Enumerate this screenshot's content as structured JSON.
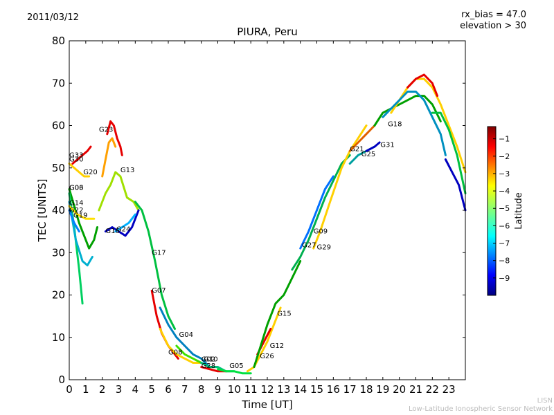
{
  "header": {
    "date": "2011/03/12",
    "rx_bias": "rx_bias = 47.0",
    "elevation": "elevation > 30"
  },
  "credit": {
    "line1": "LISN",
    "line2": "Low-Latitude Ionospheric Sensor Network"
  },
  "chart_data": {
    "type": "scatter",
    "title": "PIURA, Peru",
    "xlabel": "Time [UT]",
    "ylabel": "TEC [UNITS]",
    "xlim": [
      0,
      24
    ],
    "ylim": [
      0,
      80
    ],
    "xticks": [
      "0",
      "1",
      "2",
      "3",
      "4",
      "5",
      "6",
      "7",
      "8",
      "9",
      "10",
      "11",
      "12",
      "13",
      "14",
      "15",
      "16",
      "17",
      "18",
      "19",
      "20",
      "21",
      "22",
      "23"
    ],
    "yticks": [
      "0",
      "10",
      "20",
      "30",
      "40",
      "50",
      "60",
      "70",
      "80"
    ],
    "grid": false,
    "colorbar": {
      "label": "Latitude",
      "range": [
        -10,
        -0.3
      ],
      "ticks": [
        "-1",
        "-2",
        "-3",
        "-4",
        "-5",
        "-6",
        "-7",
        "-8",
        "-9"
      ]
    },
    "series": [
      {
        "name": "G33",
        "color": "#e60000",
        "points": [
          [
            0.2,
            51
          ],
          [
            0.5,
            52
          ],
          [
            0.8,
            53
          ],
          [
            1.1,
            54
          ],
          [
            1.3,
            55
          ]
        ]
      },
      {
        "name": "G30",
        "color": "#ffd000",
        "points": [
          [
            0.0,
            51
          ],
          [
            0.3,
            50
          ],
          [
            0.6,
            49
          ],
          [
            0.9,
            48
          ],
          [
            1.2,
            48
          ]
        ]
      },
      {
        "name": "G23",
        "color": "#e60000",
        "points": [
          [
            2.3,
            58
          ],
          [
            2.5,
            61
          ],
          [
            2.7,
            60
          ],
          [
            2.9,
            57
          ],
          [
            3.1,
            55
          ],
          [
            3.2,
            53
          ]
        ]
      },
      {
        "name": "G20",
        "color": "#ffa000",
        "points": [
          [
            2.0,
            48
          ],
          [
            2.2,
            52
          ],
          [
            2.4,
            56
          ],
          [
            2.6,
            57
          ],
          [
            2.8,
            55
          ]
        ]
      },
      {
        "name": "G13",
        "color": "#a0e000",
        "points": [
          [
            1.8,
            40
          ],
          [
            2.2,
            44
          ],
          [
            2.5,
            46
          ],
          [
            2.8,
            49
          ],
          [
            3.1,
            48
          ],
          [
            3.5,
            43
          ],
          [
            3.9,
            42
          ],
          [
            4.2,
            40
          ]
        ]
      },
      {
        "name": "G06",
        "color": "#00a000",
        "points": [
          [
            0.0,
            45
          ],
          [
            0.3,
            41
          ],
          [
            0.6,
            37
          ],
          [
            0.9,
            34
          ],
          [
            1.2,
            31
          ],
          [
            1.5,
            33
          ],
          [
            1.7,
            36
          ]
        ]
      },
      {
        "name": "G03",
        "color": "#00d060",
        "points": [
          [
            0.0,
            44
          ],
          [
            0.3,
            36
          ],
          [
            0.6,
            26
          ],
          [
            0.8,
            18
          ]
        ]
      },
      {
        "name": "G14",
        "color": "#00b0d0",
        "points": [
          [
            0.0,
            42
          ],
          [
            0.4,
            33
          ],
          [
            0.8,
            28
          ],
          [
            1.1,
            27
          ],
          [
            1.4,
            29
          ]
        ]
      },
      {
        "name": "G22",
        "color": "#ffe000",
        "points": [
          [
            0.0,
            41
          ],
          [
            0.5,
            39
          ],
          [
            1.0,
            38
          ],
          [
            1.5,
            38
          ]
        ]
      },
      {
        "name": "G19",
        "color": "#0080ff",
        "points": [
          [
            0.0,
            40
          ],
          [
            0.3,
            37
          ],
          [
            0.6,
            35
          ]
        ]
      },
      {
        "name": "G16",
        "color": "#0000c0",
        "points": [
          [
            2.2,
            35
          ],
          [
            2.6,
            36
          ],
          [
            3.0,
            35
          ],
          [
            3.4,
            34
          ],
          [
            3.8,
            36
          ],
          [
            4.2,
            40
          ]
        ]
      },
      {
        "name": "G24",
        "color": "#00b0ff",
        "points": [
          [
            2.8,
            35
          ],
          [
            3.2,
            36
          ],
          [
            3.6,
            37
          ],
          [
            4.0,
            39
          ]
        ]
      },
      {
        "name": "G17",
        "color": "#00c040",
        "points": [
          [
            4.0,
            42
          ],
          [
            4.4,
            40
          ],
          [
            4.8,
            35
          ],
          [
            5.2,
            28
          ],
          [
            5.6,
            20
          ],
          [
            6.0,
            15
          ],
          [
            6.4,
            12
          ]
        ]
      },
      {
        "name": "G07",
        "color": "#e60000",
        "points": [
          [
            5.0,
            21
          ],
          [
            5.3,
            15
          ],
          [
            5.6,
            11
          ],
          [
            6.0,
            8
          ],
          [
            6.4,
            6
          ],
          [
            6.6,
            5
          ]
        ]
      },
      {
        "name": "G04",
        "color": "#0080c0",
        "points": [
          [
            5.5,
            17
          ],
          [
            6.0,
            13
          ],
          [
            6.5,
            10
          ],
          [
            7.0,
            8
          ],
          [
            7.5,
            6
          ],
          [
            8.0,
            5
          ],
          [
            8.5,
            3
          ]
        ]
      },
      {
        "name": "G08",
        "color": "#ffd000",
        "points": [
          [
            5.5,
            12
          ],
          [
            6.0,
            8
          ],
          [
            6.5,
            6
          ],
          [
            7.0,
            5
          ],
          [
            7.5,
            4
          ],
          [
            8.0,
            4
          ]
        ]
      },
      {
        "name": "G02",
        "color": "#40e000",
        "points": [
          [
            6.5,
            8
          ],
          [
            7.0,
            6
          ],
          [
            7.5,
            5
          ],
          [
            8.0,
            4
          ],
          [
            8.5,
            3
          ],
          [
            9.0,
            3
          ]
        ]
      },
      {
        "name": "G10",
        "color": "#00c080",
        "points": [
          [
            8.0,
            4
          ],
          [
            8.5,
            3
          ],
          [
            9.0,
            3
          ],
          [
            9.5,
            2
          ],
          [
            10.0,
            2
          ]
        ]
      },
      {
        "name": "G28",
        "color": "#e60000",
        "points": [
          [
            8.0,
            3
          ],
          [
            8.5,
            2.5
          ],
          [
            9.0,
            2
          ],
          [
            9.5,
            2
          ]
        ]
      },
      {
        "name": "G05",
        "color": "#00e040",
        "points": [
          [
            9.0,
            2.5
          ],
          [
            9.5,
            2
          ],
          [
            10.0,
            2
          ],
          [
            10.5,
            1.5
          ],
          [
            11.0,
            1.5
          ]
        ]
      },
      {
        "name": "G26",
        "color": "#ffd000",
        "points": [
          [
            10.8,
            2
          ],
          [
            11.2,
            3
          ],
          [
            11.6,
            6
          ],
          [
            12.0,
            9
          ],
          [
            12.4,
            13
          ],
          [
            12.8,
            17
          ]
        ]
      },
      {
        "name": "G12",
        "color": "#e60000",
        "points": [
          [
            11.4,
            6
          ],
          [
            11.8,
            9
          ],
          [
            12.2,
            12
          ]
        ]
      },
      {
        "name": "G15",
        "color": "#00a000",
        "points": [
          [
            11.2,
            3
          ],
          [
            11.6,
            8
          ],
          [
            12.0,
            13
          ],
          [
            12.5,
            18
          ],
          [
            13.0,
            20
          ],
          [
            13.5,
            24
          ],
          [
            14.0,
            28
          ]
        ]
      },
      {
        "name": "G27",
        "color": "#0070ff",
        "points": [
          [
            14.0,
            31
          ],
          [
            14.5,
            35
          ],
          [
            15.0,
            40
          ],
          [
            15.5,
            45
          ],
          [
            16.0,
            48
          ]
        ]
      },
      {
        "name": "G09",
        "color": "#00b050",
        "points": [
          [
            13.5,
            26
          ],
          [
            14.0,
            29
          ],
          [
            14.5,
            33
          ],
          [
            15.0,
            38
          ],
          [
            15.5,
            43
          ],
          [
            16.0,
            47
          ],
          [
            16.5,
            51
          ],
          [
            17.0,
            53
          ]
        ]
      },
      {
        "name": "G29",
        "color": "#ffd000",
        "points": [
          [
            14.8,
            31
          ],
          [
            15.2,
            35
          ],
          [
            15.8,
            42
          ],
          [
            16.5,
            50
          ],
          [
            17.0,
            54
          ],
          [
            17.5,
            57
          ],
          [
            18.0,
            60
          ]
        ]
      },
      {
        "name": "G21",
        "color": "#e06000",
        "points": [
          [
            17.0,
            54
          ],
          [
            17.5,
            56
          ],
          [
            18.0,
            58
          ],
          [
            18.5,
            60
          ]
        ]
      },
      {
        "name": "G25",
        "color": "#00a0a0",
        "points": [
          [
            17.0,
            51
          ],
          [
            17.5,
            53
          ],
          [
            18.0,
            54
          ],
          [
            18.5,
            55
          ]
        ]
      },
      {
        "name": "G31",
        "color": "#0000c0",
        "points": [
          [
            18.0,
            54
          ],
          [
            18.5,
            55
          ],
          [
            18.8,
            56
          ]
        ]
      },
      {
        "name": "G18",
        "color": "#00a000",
        "points": [
          [
            18.5,
            60
          ],
          [
            19.0,
            63
          ],
          [
            19.5,
            64
          ],
          [
            20.0,
            65
          ],
          [
            20.5,
            66
          ],
          [
            21.0,
            67
          ],
          [
            21.5,
            67
          ],
          [
            22.0,
            65
          ],
          [
            22.5,
            61
          ]
        ]
      },
      {
        "name": "",
        "color": "#ffd000",
        "points": [
          [
            19.5,
            63
          ],
          [
            20.0,
            66
          ],
          [
            20.5,
            69
          ],
          [
            21.0,
            71
          ],
          [
            21.5,
            71
          ],
          [
            22.0,
            69
          ],
          [
            22.5,
            65
          ],
          [
            23.0,
            60
          ],
          [
            23.5,
            55
          ],
          [
            24.0,
            49
          ]
        ]
      },
      {
        "name": "",
        "color": "#0090c0",
        "points": [
          [
            19.0,
            62
          ],
          [
            19.5,
            64
          ],
          [
            20.0,
            66
          ],
          [
            20.5,
            68
          ],
          [
            21.0,
            68
          ],
          [
            21.5,
            66
          ],
          [
            22.0,
            62
          ],
          [
            22.5,
            58
          ],
          [
            22.8,
            53
          ]
        ]
      },
      {
        "name": "",
        "color": "#e60000",
        "points": [
          [
            20.5,
            69
          ],
          [
            21.0,
            71
          ],
          [
            21.5,
            72
          ],
          [
            22.0,
            70
          ],
          [
            22.3,
            67
          ]
        ]
      },
      {
        "name": "",
        "color": "#0000c0",
        "points": [
          [
            22.8,
            52
          ],
          [
            23.2,
            49
          ],
          [
            23.6,
            46
          ],
          [
            24.0,
            40
          ]
        ]
      },
      {
        "name": "",
        "color": "#00c040",
        "points": [
          [
            22.0,
            63
          ],
          [
            22.5,
            63
          ],
          [
            23.0,
            59
          ],
          [
            23.5,
            53
          ],
          [
            24.0,
            44
          ]
        ]
      }
    ],
    "labels": [
      {
        "text": "G33",
        "x": 0.0,
        "y": 52.5
      },
      {
        "text": "G30",
        "x": 0.0,
        "y": 51.5
      },
      {
        "text": "G23",
        "x": 1.8,
        "y": 58.5
      },
      {
        "text": "G20",
        "x": 0.85,
        "y": 48.5
      },
      {
        "text": "G13",
        "x": 3.1,
        "y": 49.0
      },
      {
        "text": "G06",
        "x": 0.0,
        "y": 44.8
      },
      {
        "text": "G03",
        "x": 0.0,
        "y": 44.8
      },
      {
        "text": "G14",
        "x": 0.0,
        "y": 41.2
      },
      {
        "text": "G22",
        "x": 0.0,
        "y": 39.5
      },
      {
        "text": "G19",
        "x": 0.25,
        "y": 38.3
      },
      {
        "text": "G16",
        "x": 2.2,
        "y": 34.6
      },
      {
        "text": "G24",
        "x": 2.85,
        "y": 35.0
      },
      {
        "text": "G17",
        "x": 5.0,
        "y": 29.5
      },
      {
        "text": "G07",
        "x": 5.0,
        "y": 20.6
      },
      {
        "text": "G04",
        "x": 6.65,
        "y": 10.1
      },
      {
        "text": "G08",
        "x": 6.0,
        "y": 6.0
      },
      {
        "text": "G02",
        "x": 8.0,
        "y": 4.3
      },
      {
        "text": "G10",
        "x": 8.15,
        "y": 4.3
      },
      {
        "text": "G28",
        "x": 8.0,
        "y": 2.8
      },
      {
        "text": "G05",
        "x": 9.7,
        "y": 2.8
      },
      {
        "text": "G26",
        "x": 11.55,
        "y": 5.1
      },
      {
        "text": "G12",
        "x": 12.15,
        "y": 7.5
      },
      {
        "text": "G15",
        "x": 12.6,
        "y": 15.1
      },
      {
        "text": "G27",
        "x": 14.1,
        "y": 31.3
      },
      {
        "text": "G09",
        "x": 14.8,
        "y": 34.5
      },
      {
        "text": "G29",
        "x": 15.0,
        "y": 30.8
      },
      {
        "text": "G21",
        "x": 17.0,
        "y": 54.0
      },
      {
        "text": "G25",
        "x": 17.7,
        "y": 52.7
      },
      {
        "text": "G31",
        "x": 18.85,
        "y": 54.9
      },
      {
        "text": "G18",
        "x": 19.3,
        "y": 59.8
      }
    ]
  }
}
